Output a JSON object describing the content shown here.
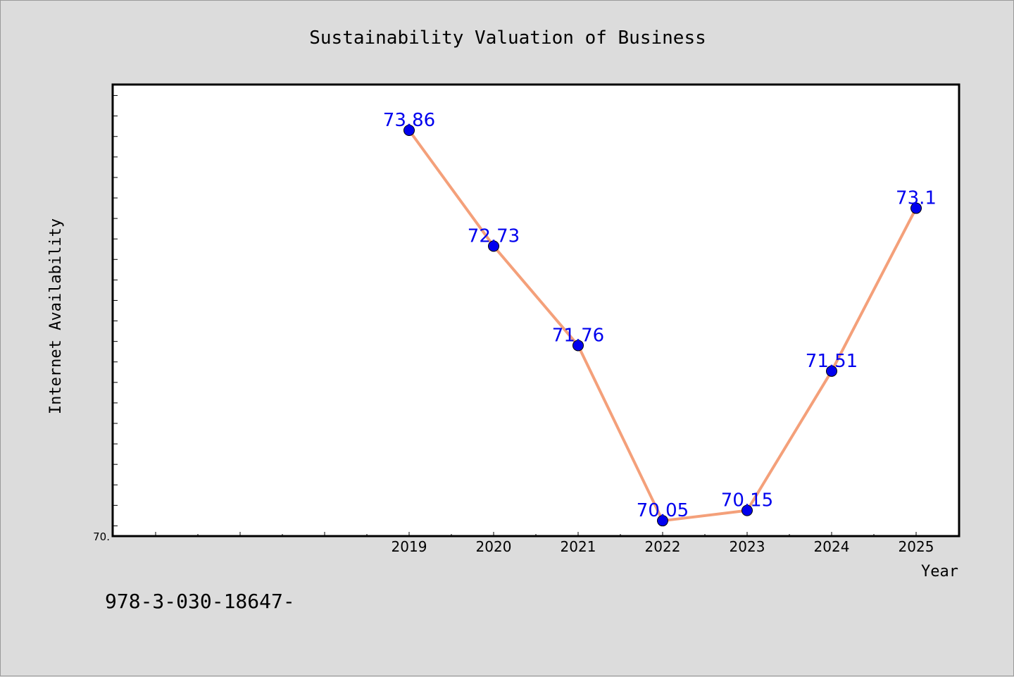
{
  "chart_data": {
    "type": "line",
    "title": "Sustainability Valuation of Business",
    "xlabel": "Year",
    "ylabel": "Internet Availability",
    "categories": [
      "2019",
      "2020",
      "2021",
      "2022",
      "2023",
      "2024",
      "2025"
    ],
    "values": [
      73.86,
      72.73,
      71.76,
      70.05,
      70.15,
      71.51,
      73.1
    ],
    "data_labels": [
      "73.86",
      "72.73",
      "71.76",
      "70.05",
      "70.15",
      "71.51",
      "73.1"
    ],
    "x_range": [
      2015.5,
      2025.5
    ],
    "ylim": [
      69.9,
      74.3
    ],
    "y_tick_label": "70.",
    "grid": false,
    "line_color": "#f4a07a",
    "marker_color": "#0000ee",
    "label_color": "#0000ee"
  },
  "footer": {
    "text": "978-3-030-18647-"
  }
}
